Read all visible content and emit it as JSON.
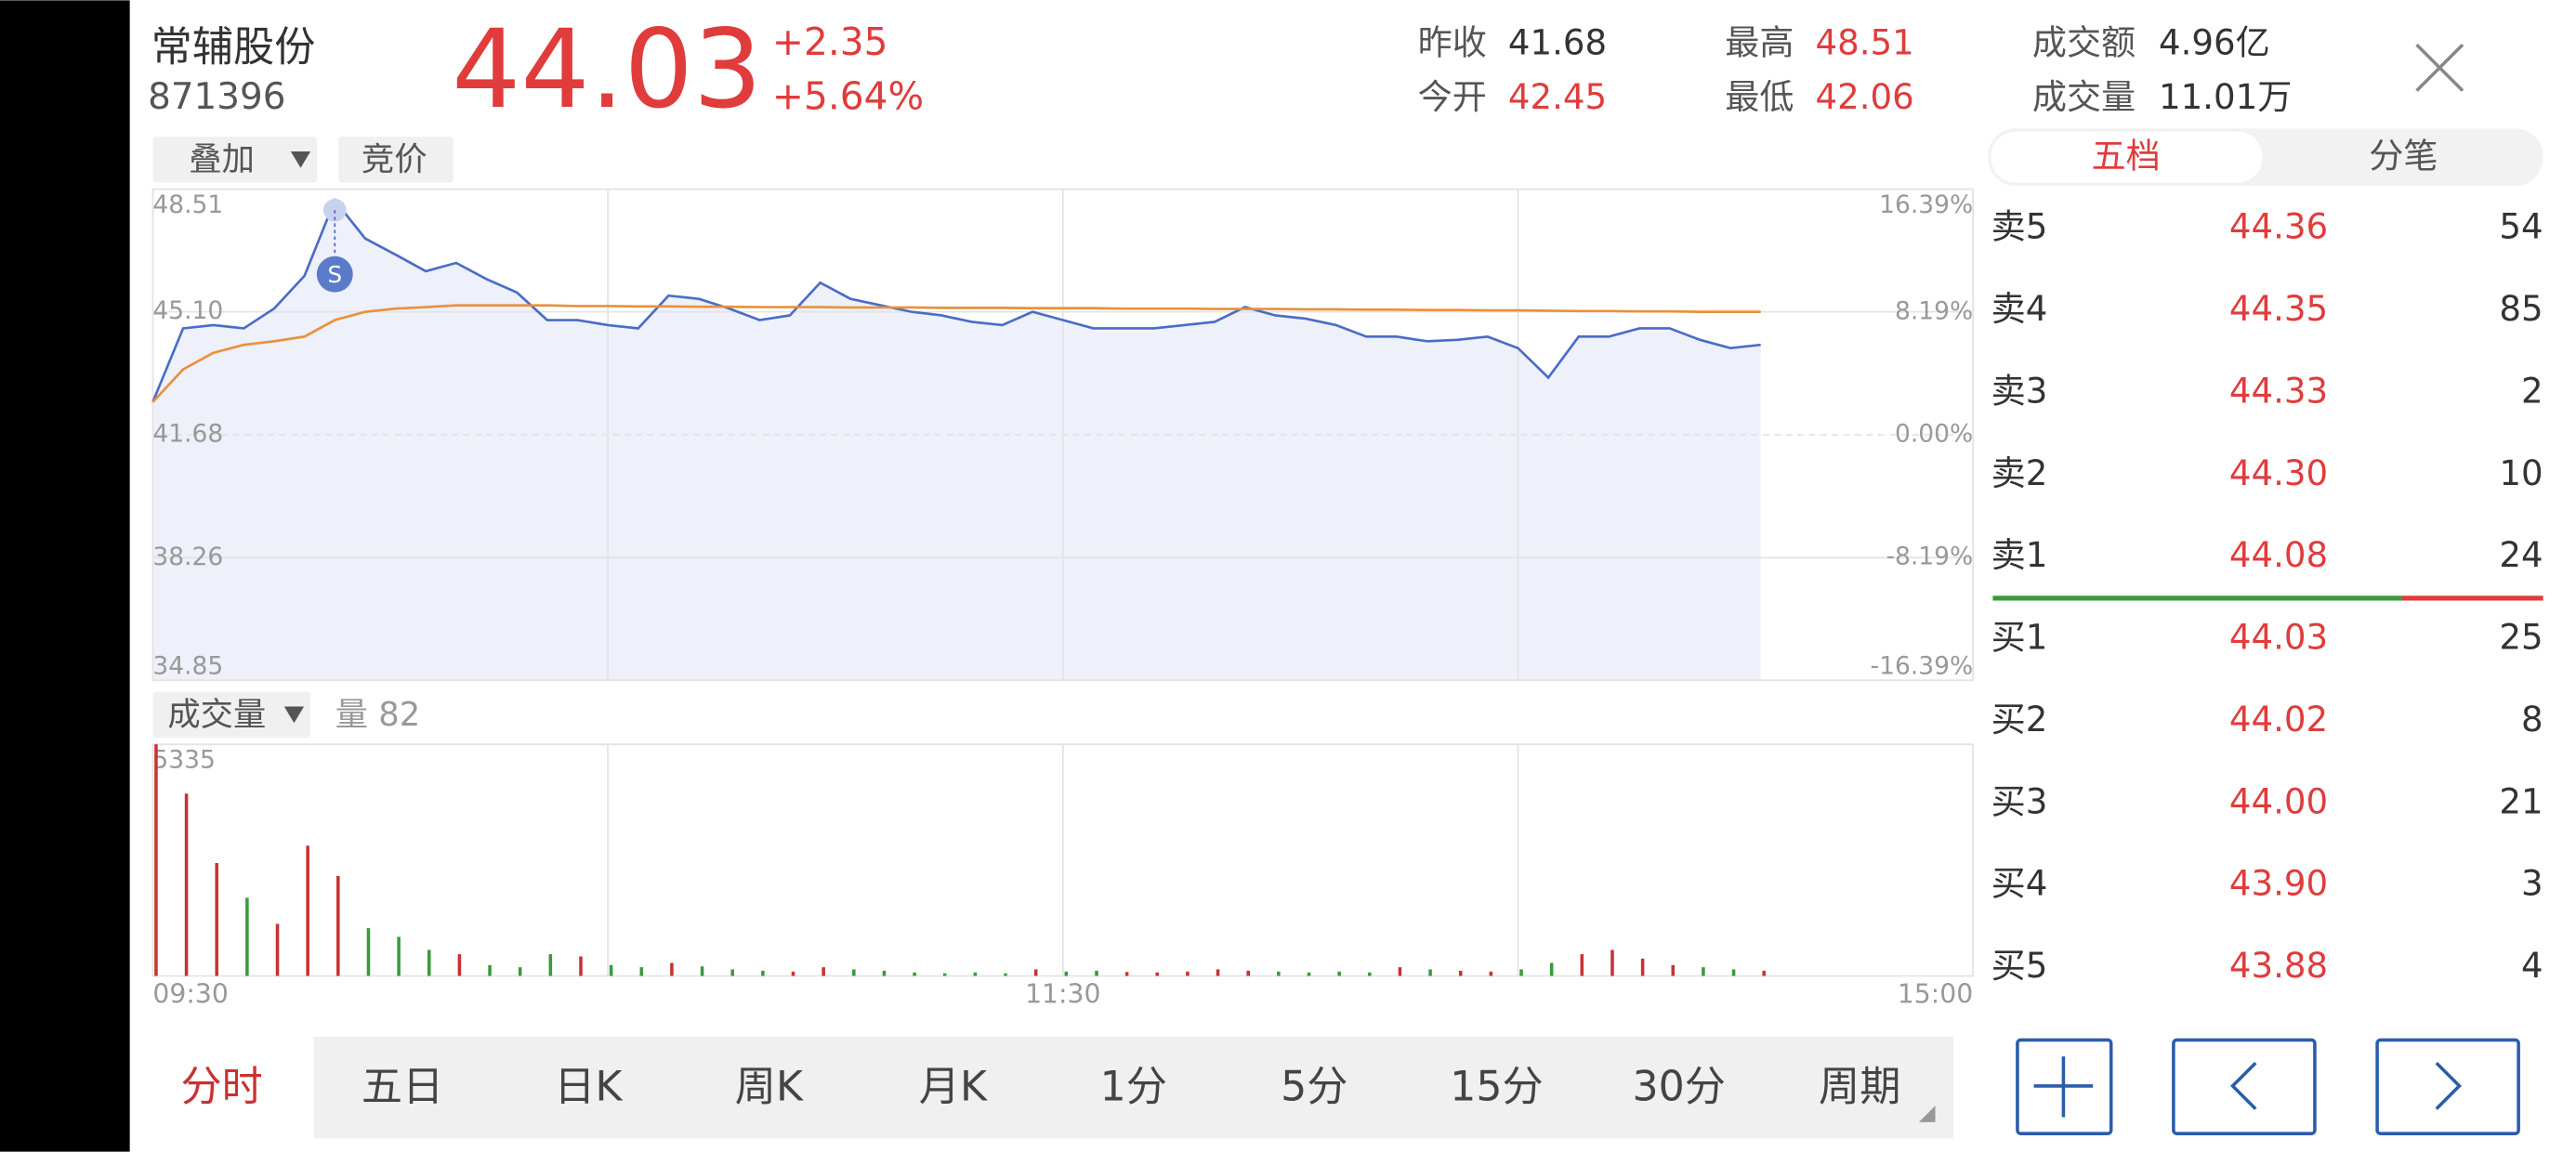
{
  "header": {
    "name": "常辅股份",
    "code": "871396",
    "price": "44.03",
    "change": "+2.35",
    "change_pct": "+5.64%",
    "stats": [
      {
        "label": "昨收",
        "value": "41.68"
      },
      {
        "label": "今开",
        "value": "42.45"
      },
      {
        "label": "最高",
        "value": "48.51"
      },
      {
        "label": "最低",
        "value": "42.06"
      },
      {
        "label": "成交额",
        "value": "4.96亿"
      },
      {
        "label": "成交量",
        "value": "11.01万"
      }
    ]
  },
  "buttons": {
    "overlay": "叠加",
    "auction": "竞价",
    "volume_menu": "成交量"
  },
  "book_tabs": [
    "五档",
    "分笔"
  ],
  "order_book": [
    [
      "卖5",
      "44.36",
      "54"
    ],
    [
      "卖4",
      "44.35",
      "85"
    ],
    [
      "卖3",
      "44.33",
      "2"
    ],
    [
      "卖2",
      "44.30",
      "10"
    ],
    [
      "卖1",
      "44.08",
      "24"
    ],
    [
      "买1",
      "44.03",
      "25"
    ],
    [
      "买2",
      "44.02",
      "8"
    ],
    [
      "买3",
      "44.00",
      "21"
    ],
    [
      "买4",
      "43.90",
      "3"
    ],
    [
      "买5",
      "43.88",
      "4"
    ]
  ],
  "period_tabs": [
    "分时",
    "五日",
    "日K",
    "周K",
    "月K",
    "1分",
    "5分",
    "15分",
    "30分",
    "周期"
  ],
  "chart_data": [
    {
      "type": "line",
      "annotation": "S",
      "ylim": [
        34.85,
        48.51
      ],
      "yticks": [
        48.51,
        {
          "value": 45.1,
          "label": "45.10"
        },
        41.68,
        38.26,
        34.85
      ],
      "y2lim": [
        -16.39,
        16.39
      ],
      "y2ticks": [
        {
          "value": 16.39,
          "label": "16.39%"
        },
        {
          "value": 8.19,
          "label": "8.19%"
        },
        {
          "value": 0,
          "label": "0.00%"
        },
        {
          "value": -8.19,
          "label": "-8.19%"
        },
        {
          "value": -16.39,
          "label": "-16.39%"
        }
      ],
      "x": [
        0,
        4,
        8,
        12,
        16,
        20,
        24,
        28,
        32,
        36,
        40,
        44,
        48,
        52,
        56,
        60,
        64,
        68,
        72,
        76,
        80,
        84,
        88,
        92,
        96,
        100,
        104,
        108,
        112,
        116,
        120,
        124,
        128,
        132,
        136,
        140,
        144,
        148,
        152,
        156,
        160,
        164,
        168,
        172,
        176,
        180,
        184,
        188,
        192,
        196,
        200,
        204,
        208,
        212
      ],
      "series": [
        {
          "color": "#4a6cc8",
          "fill": "#eef0fa",
          "values": [
            42.59,
            44.64,
            44.73,
            44.64,
            45.19,
            46.1,
            48.2,
            47.14,
            46.69,
            46.23,
            46.46,
            46.01,
            45.64,
            44.87,
            44.87,
            44.73,
            44.64,
            45.55,
            45.46,
            45.19,
            44.87,
            45.0,
            45.91,
            45.46,
            45.28,
            45.1,
            45.0,
            44.82,
            44.73,
            45.1,
            44.87,
            44.64,
            44.64,
            44.64,
            44.73,
            44.82,
            45.23,
            45.0,
            44.91,
            44.73,
            44.41,
            44.41,
            44.28,
            44.32,
            44.41,
            44.09,
            43.27,
            44.41,
            44.41,
            44.64,
            44.64,
            44.32,
            44.09,
            44.18
          ]
        },
        {
          "color": "#e8913a",
          "values": [
            42.59,
            43.5,
            43.96,
            44.18,
            44.28,
            44.41,
            44.87,
            45.1,
            45.19,
            45.23,
            45.28,
            45.28,
            45.28,
            45.28,
            45.26,
            45.26,
            45.25,
            45.25,
            45.24,
            45.24,
            45.23,
            45.23,
            45.23,
            45.22,
            45.22,
            45.22,
            45.21,
            45.21,
            45.21,
            45.2,
            45.2,
            45.2,
            45.19,
            45.19,
            45.19,
            45.18,
            45.18,
            45.18,
            45.17,
            45.17,
            45.16,
            45.16,
            45.15,
            45.15,
            45.14,
            45.14,
            45.13,
            45.12,
            45.12,
            45.11,
            45.11,
            45.1,
            45.1,
            45.1
          ]
        }
      ]
    },
    {
      "type": "bar",
      "title": "量 82",
      "ylim": [
        0,
        5335
      ],
      "yticks": [
        5335
      ],
      "xlim": [
        0,
        240
      ],
      "xticks": [
        {
          "value": 0,
          "label": "09:30"
        },
        {
          "value": 60,
          "label": null
        },
        {
          "value": 120,
          "label": "11:30"
        },
        {
          "value": 180,
          "label": null
        },
        {
          "value": 240,
          "label": "15:00"
        }
      ],
      "up_color": "#c83232",
      "down_color": "#3a9a3a",
      "values": [
        5335,
        4200,
        2600,
        1800,
        1200,
        3000,
        2300,
        1100,
        900,
        600,
        500,
        250,
        200,
        500,
        450,
        250,
        200,
        300,
        220,
        150,
        120,
        100,
        200,
        150,
        120,
        80,
        60,
        80,
        60,
        150,
        100,
        120,
        90,
        80,
        100,
        150,
        120,
        100,
        80,
        100,
        80,
        200,
        150,
        120,
        100,
        150,
        300,
        500,
        600,
        400,
        250,
        200,
        150,
        120
      ]
    }
  ]
}
